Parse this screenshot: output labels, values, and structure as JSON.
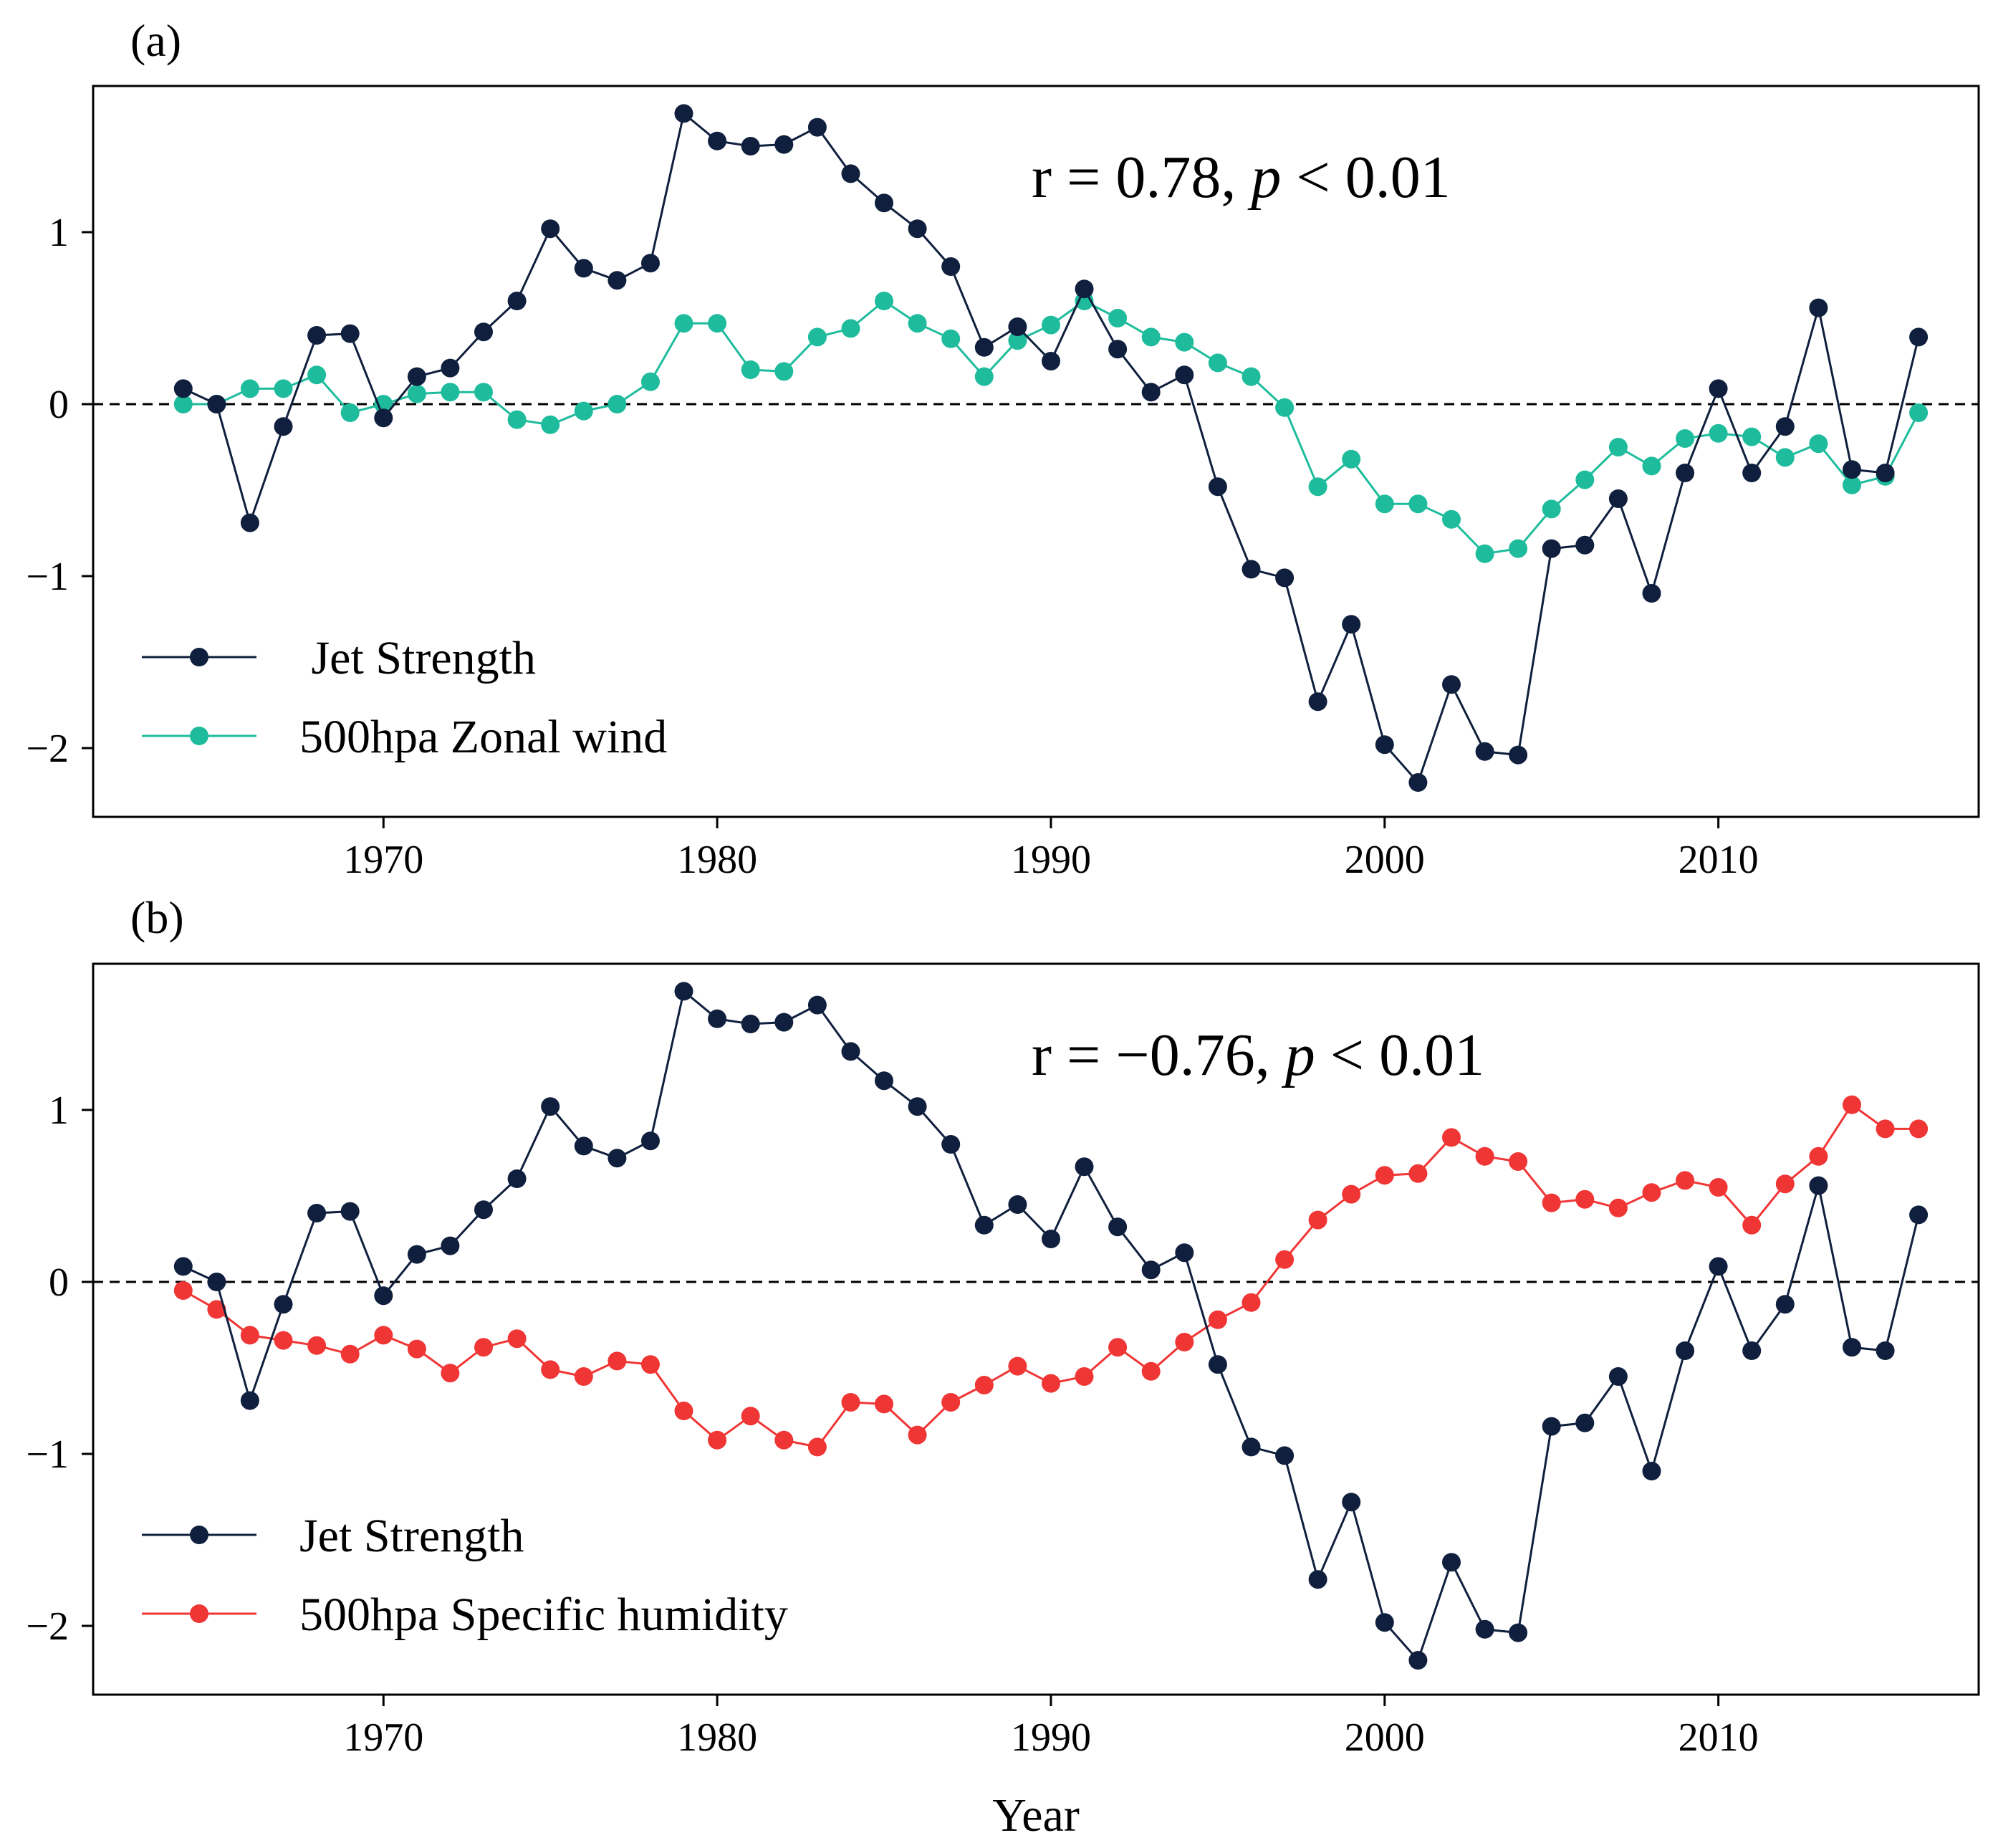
{
  "chart_data": [
    {
      "type": "line",
      "panel_label": "(a)",
      "annotation": {
        "prefix": "r = 0.78, ",
        "p": "p",
        "suffix": " < 0.01"
      },
      "xlabel": "",
      "ylabel": "",
      "xlim": [
        1961.3,
        2017.8
      ],
      "ylim": [
        -2.4,
        1.85
      ],
      "xticks": [
        1970,
        1980,
        1990,
        2000,
        2010
      ],
      "yticks": [
        -2,
        -1,
        0,
        1
      ],
      "ytick_labels": [
        "−2",
        "−1",
        "0",
        "1"
      ],
      "zero_line": "dashed",
      "legend_position": "lower-left",
      "x": [
        1964,
        1965,
        1966,
        1967,
        1968,
        1969,
        1970,
        1971,
        1972,
        1973,
        1974,
        1975,
        1976,
        1977,
        1978,
        1979,
        1980,
        1981,
        1982,
        1983,
        1984,
        1985,
        1986,
        1987,
        1988,
        1989,
        1990,
        1991,
        1992,
        1993,
        1994,
        1995,
        1996,
        1997,
        1998,
        1999,
        2000,
        2001,
        2002,
        2003,
        2004,
        2005,
        2006,
        2007,
        2008,
        2009,
        2010,
        2011,
        2012,
        2013,
        2014,
        2015,
        2016
      ],
      "series": [
        {
          "name": " Jet Strength",
          "color": "#0f1f3d",
          "values": [
            0.09,
            0.0,
            -0.69,
            -0.13,
            0.4,
            0.41,
            -0.08,
            0.16,
            0.21,
            0.42,
            0.6,
            1.02,
            0.79,
            0.72,
            0.82,
            1.69,
            1.53,
            1.5,
            1.51,
            1.61,
            1.34,
            1.17,
            1.02,
            0.8,
            0.33,
            0.45,
            0.25,
            0.67,
            0.32,
            0.07,
            0.17,
            -0.48,
            -0.96,
            -1.01,
            -1.73,
            -1.28,
            -1.98,
            -2.2,
            -1.63,
            -2.02,
            -2.04,
            -0.84,
            -0.82,
            -0.55,
            -1.1,
            -0.4,
            0.09,
            -0.4,
            -0.13,
            0.56,
            -0.38,
            -0.4,
            0.39
          ]
        },
        {
          "name": "500hpa Zonal wind",
          "color": "#1ebc9c",
          "values": [
            0.0,
            0.0,
            0.09,
            0.09,
            0.17,
            -0.05,
            0.0,
            0.06,
            0.07,
            0.07,
            -0.09,
            -0.12,
            -0.04,
            0.0,
            0.13,
            0.47,
            0.47,
            0.2,
            0.19,
            0.39,
            0.44,
            0.6,
            0.47,
            0.38,
            0.16,
            0.37,
            0.46,
            0.6,
            0.5,
            0.39,
            0.36,
            0.24,
            0.16,
            -0.02,
            -0.48,
            -0.32,
            -0.58,
            -0.58,
            -0.67,
            -0.87,
            -0.84,
            -0.61,
            -0.44,
            -0.25,
            -0.36,
            -0.2,
            -0.17,
            -0.19,
            -0.31,
            -0.23,
            -0.47,
            -0.42,
            -0.05
          ]
        }
      ]
    },
    {
      "type": "line",
      "panel_label": "(b)",
      "annotation": {
        "prefix": "r = −0.76, ",
        "p": "p",
        "suffix": " < 0.01"
      },
      "xlabel": "Year",
      "ylabel": "",
      "xlim": [
        1961.3,
        2017.8
      ],
      "ylim": [
        -2.4,
        1.85
      ],
      "xticks": [
        1970,
        1980,
        1990,
        2000,
        2010
      ],
      "yticks": [
        -2,
        -1,
        0,
        1
      ],
      "ytick_labels": [
        "−2",
        "−1",
        "0",
        "1"
      ],
      "zero_line": "dashed",
      "legend_position": "lower-left",
      "x": [
        1964,
        1965,
        1966,
        1967,
        1968,
        1969,
        1970,
        1971,
        1972,
        1973,
        1974,
        1975,
        1976,
        1977,
        1978,
        1979,
        1980,
        1981,
        1982,
        1983,
        1984,
        1985,
        1986,
        1987,
        1988,
        1989,
        1990,
        1991,
        1992,
        1993,
        1994,
        1995,
        1996,
        1997,
        1998,
        1999,
        2000,
        2001,
        2002,
        2003,
        2004,
        2005,
        2006,
        2007,
        2008,
        2009,
        2010,
        2011,
        2012,
        2013,
        2014,
        2015,
        2016
      ],
      "series": [
        {
          "name": "Jet Strength",
          "color": "#0f1f3d",
          "values": [
            0.09,
            0.0,
            -0.69,
            -0.13,
            0.4,
            0.41,
            -0.08,
            0.16,
            0.21,
            0.42,
            0.6,
            1.02,
            0.79,
            0.72,
            0.82,
            1.69,
            1.53,
            1.5,
            1.51,
            1.61,
            1.34,
            1.17,
            1.02,
            0.8,
            0.33,
            0.45,
            0.25,
            0.67,
            0.32,
            0.07,
            0.17,
            -0.48,
            -0.96,
            -1.01,
            -1.73,
            -1.28,
            -1.98,
            -2.2,
            -1.63,
            -2.02,
            -2.04,
            -0.84,
            -0.82,
            -0.55,
            -1.1,
            -0.4,
            0.09,
            -0.4,
            -0.13,
            0.56,
            -0.38,
            -0.4,
            0.39
          ]
        },
        {
          "name": "500hpa Specific humidity",
          "color": "#f03535",
          "values": [
            -0.05,
            -0.16,
            -0.31,
            -0.34,
            -0.37,
            -0.42,
            -0.31,
            -0.39,
            -0.53,
            -0.38,
            -0.33,
            -0.51,
            -0.55,
            -0.46,
            -0.48,
            -0.75,
            -0.92,
            -0.78,
            -0.92,
            -0.96,
            -0.7,
            -0.71,
            -0.89,
            -0.7,
            -0.6,
            -0.49,
            -0.59,
            -0.55,
            -0.38,
            -0.52,
            -0.35,
            -0.22,
            -0.12,
            0.13,
            0.36,
            0.51,
            0.62,
            0.63,
            0.84,
            0.73,
            0.7,
            0.46,
            0.48,
            0.43,
            0.52,
            0.59,
            0.55,
            0.33,
            0.57,
            0.73,
            1.03,
            0.89,
            0.89
          ]
        }
      ]
    }
  ]
}
